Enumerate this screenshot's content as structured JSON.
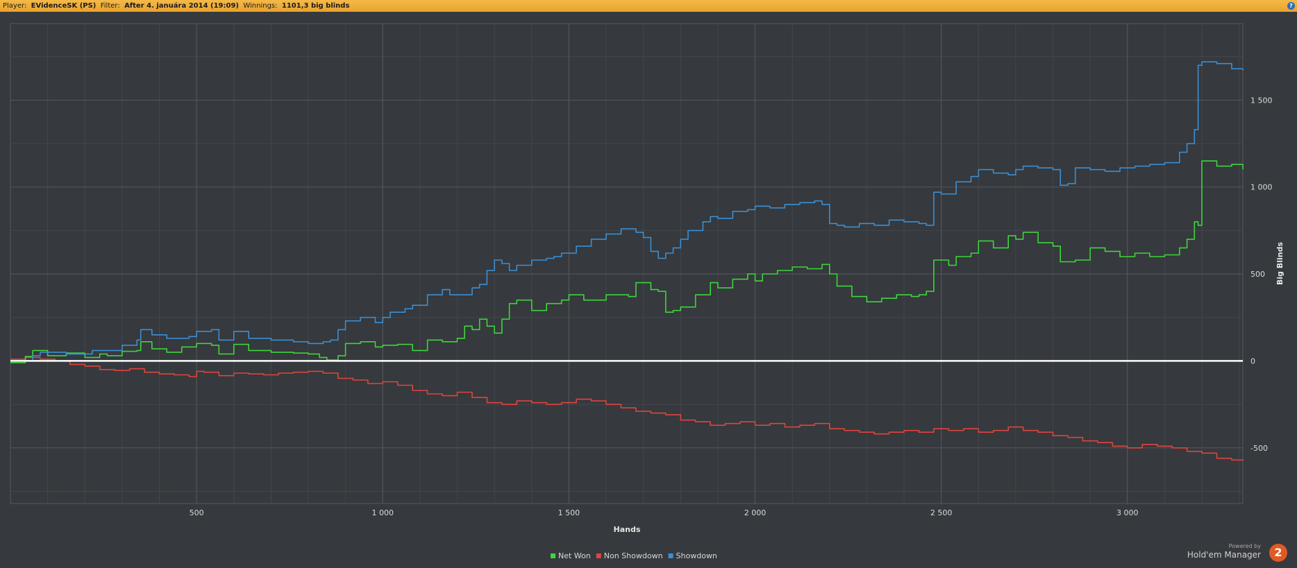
{
  "header": {
    "player_label": "Player:",
    "player_value": "EVidenceSK (PS)",
    "filter_label": "Filter:",
    "filter_value": "After 4. januára 2014 (19:09)",
    "winnings_label": "Winnings:",
    "winnings_value": "1101,3 big blinds",
    "help_glyph": "?"
  },
  "branding": {
    "powered_by": "Powered by",
    "product": "Hold'em Manager",
    "logo_glyph": "2"
  },
  "colors": {
    "net_won": "#3dd63d",
    "non_showdown": "#e0443e",
    "showdown": "#3a8fd6",
    "zero_line": "#ffffff",
    "grid": "#55595e",
    "plot_bg": "#36393d"
  },
  "chart_data": {
    "type": "line",
    "xlabel": "Hands",
    "ylabel": "Big Blinds",
    "xlim": [
      0,
      3310
    ],
    "ylim": [
      -820,
      1940
    ],
    "xticks": [
      500,
      1000,
      1500,
      2000,
      2500,
      3000
    ],
    "xtick_labels": [
      "500",
      "1 000",
      "1 500",
      "2 000",
      "2 500",
      "3 000"
    ],
    "yticks": [
      -500,
      0,
      500,
      1000,
      1500
    ],
    "ytick_labels": [
      "-500",
      "0",
      "500",
      "1 000",
      "1 500"
    ],
    "grid": true,
    "legend_position": "bottom-center",
    "series": [
      {
        "name": "Net Won",
        "x": [
          0,
          40,
          60,
          100,
          150,
          200,
          240,
          260,
          300,
          340,
          350,
          380,
          420,
          460,
          500,
          540,
          560,
          600,
          640,
          700,
          760,
          800,
          830,
          850,
          880,
          900,
          940,
          980,
          1000,
          1040,
          1080,
          1120,
          1160,
          1200,
          1220,
          1240,
          1260,
          1280,
          1300,
          1320,
          1340,
          1360,
          1400,
          1440,
          1480,
          1500,
          1540,
          1600,
          1660,
          1680,
          1720,
          1740,
          1760,
          1780,
          1800,
          1840,
          1880,
          1900,
          1940,
          1980,
          2000,
          2020,
          2060,
          2100,
          2140,
          2180,
          2200,
          2220,
          2260,
          2300,
          2340,
          2380,
          2420,
          2440,
          2460,
          2480,
          2520,
          2540,
          2580,
          2600,
          2640,
          2680,
          2700,
          2720,
          2760,
          2800,
          2820,
          2860,
          2900,
          2940,
          2980,
          3020,
          3060,
          3100,
          3140,
          3160,
          3180,
          3190,
          3200,
          3240,
          3280,
          3310
        ],
        "y": [
          -10,
          25,
          60,
          30,
          45,
          20,
          40,
          30,
          55,
          60,
          110,
          70,
          50,
          80,
          100,
          90,
          40,
          95,
          60,
          50,
          45,
          40,
          20,
          5,
          30,
          100,
          110,
          80,
          90,
          95,
          60,
          120,
          110,
          130,
          200,
          180,
          240,
          200,
          160,
          240,
          330,
          350,
          290,
          330,
          350,
          380,
          350,
          380,
          370,
          450,
          410,
          400,
          280,
          290,
          310,
          380,
          450,
          420,
          470,
          500,
          460,
          500,
          520,
          540,
          530,
          555,
          500,
          430,
          370,
          340,
          360,
          380,
          370,
          380,
          400,
          580,
          550,
          600,
          620,
          690,
          650,
          720,
          700,
          740,
          680,
          660,
          570,
          580,
          650,
          630,
          600,
          620,
          600,
          610,
          650,
          700,
          800,
          780,
          1150,
          1120,
          1130,
          1101
        ]
      },
      {
        "name": "Non Showdown",
        "x": [
          0,
          40,
          80,
          120,
          160,
          200,
          240,
          280,
          320,
          360,
          400,
          440,
          480,
          500,
          520,
          560,
          600,
          640,
          680,
          720,
          760,
          800,
          840,
          880,
          920,
          960,
          1000,
          1040,
          1080,
          1120,
          1160,
          1200,
          1240,
          1280,
          1320,
          1360,
          1400,
          1440,
          1480,
          1520,
          1560,
          1600,
          1640,
          1680,
          1720,
          1760,
          1800,
          1840,
          1880,
          1920,
          1960,
          2000,
          2040,
          2080,
          2120,
          2160,
          2200,
          2240,
          2280,
          2320,
          2360,
          2400,
          2440,
          2480,
          2520,
          2560,
          2600,
          2640,
          2680,
          2720,
          2760,
          2800,
          2840,
          2880,
          2920,
          2960,
          3000,
          3040,
          3080,
          3120,
          3160,
          3200,
          3240,
          3280,
          3310
        ],
        "y": [
          10,
          20,
          10,
          0,
          -20,
          -30,
          -50,
          -55,
          -45,
          -65,
          -75,
          -80,
          -90,
          -60,
          -65,
          -85,
          -70,
          -75,
          -80,
          -70,
          -65,
          -60,
          -70,
          -100,
          -110,
          -130,
          -120,
          -140,
          -170,
          -190,
          -200,
          -180,
          -210,
          -240,
          -250,
          -230,
          -240,
          -250,
          -240,
          -220,
          -230,
          -250,
          -270,
          -290,
          -300,
          -310,
          -340,
          -350,
          -370,
          -360,
          -350,
          -370,
          -360,
          -380,
          -370,
          -360,
          -390,
          -400,
          -410,
          -420,
          -410,
          -400,
          -410,
          -390,
          -400,
          -390,
          -410,
          -400,
          -380,
          -400,
          -410,
          -430,
          -440,
          -460,
          -470,
          -490,
          -500,
          -480,
          -490,
          -500,
          -520,
          -530,
          -560,
          -570,
          -565
        ]
      },
      {
        "name": "Showdown",
        "x": [
          0,
          60,
          80,
          150,
          220,
          300,
          340,
          350,
          380,
          420,
          480,
          500,
          540,
          560,
          600,
          640,
          700,
          760,
          800,
          840,
          860,
          880,
          900,
          940,
          980,
          1000,
          1020,
          1060,
          1080,
          1120,
          1160,
          1180,
          1240,
          1260,
          1280,
          1300,
          1320,
          1340,
          1360,
          1400,
          1440,
          1460,
          1480,
          1520,
          1560,
          1600,
          1640,
          1680,
          1700,
          1720,
          1740,
          1760,
          1780,
          1800,
          1820,
          1860,
          1880,
          1900,
          1940,
          1980,
          2000,
          2040,
          2080,
          2120,
          2160,
          2180,
          2200,
          2220,
          2240,
          2280,
          2320,
          2360,
          2400,
          2440,
          2460,
          2480,
          2500,
          2540,
          2580,
          2600,
          2640,
          2680,
          2700,
          2720,
          2760,
          2800,
          2820,
          2840,
          2860,
          2900,
          2940,
          2980,
          3020,
          3060,
          3100,
          3140,
          3160,
          3180,
          3190,
          3200,
          3240,
          3280,
          3310
        ],
        "y": [
          0,
          30,
          50,
          40,
          60,
          90,
          120,
          180,
          150,
          130,
          140,
          170,
          180,
          120,
          170,
          130,
          120,
          110,
          100,
          110,
          120,
          180,
          230,
          250,
          220,
          250,
          280,
          300,
          320,
          380,
          410,
          380,
          420,
          440,
          520,
          580,
          560,
          520,
          550,
          580,
          590,
          600,
          620,
          660,
          700,
          730,
          760,
          740,
          710,
          630,
          590,
          620,
          650,
          700,
          750,
          800,
          830,
          820,
          860,
          870,
          890,
          880,
          900,
          910,
          920,
          900,
          790,
          780,
          770,
          790,
          780,
          810,
          800,
          790,
          780,
          970,
          960,
          1030,
          1060,
          1100,
          1080,
          1070,
          1100,
          1120,
          1110,
          1100,
          1010,
          1020,
          1110,
          1100,
          1090,
          1110,
          1120,
          1130,
          1140,
          1200,
          1250,
          1330,
          1700,
          1720,
          1710,
          1680,
          1670
        ]
      }
    ]
  }
}
